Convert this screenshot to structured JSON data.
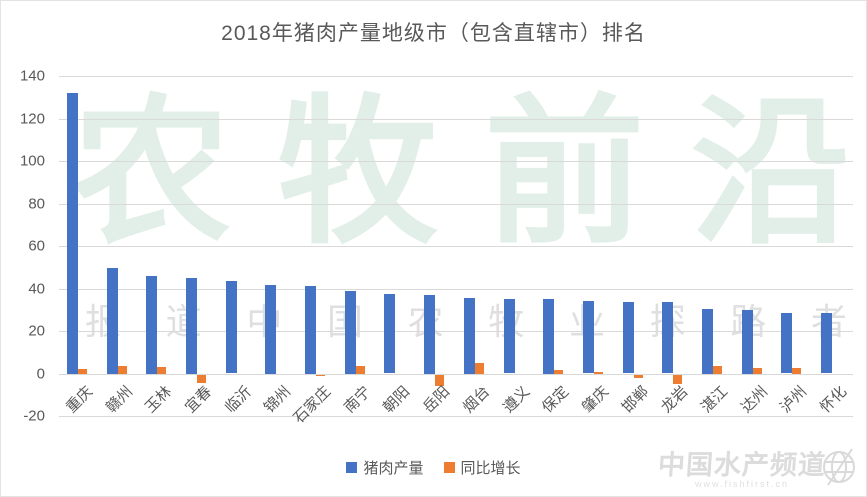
{
  "title": "2018年猪肉产量地级市（包含直辖市）排名",
  "chart_data": {
    "type": "bar",
    "title": "2018年猪肉产量地级市（包含直辖市）排名",
    "categories": [
      "重庆",
      "赣州",
      "玉林",
      "宜春",
      "临沂",
      "锦州",
      "石家庄",
      "南宁",
      "朝阳",
      "岳阳",
      "烟台",
      "遵义",
      "保定",
      "肇庆",
      "邯郸",
      "龙岩",
      "湛江",
      "达州",
      "泸州",
      "怀化"
    ],
    "series": [
      {
        "name": "猪肉产量",
        "color": "#4472C4",
        "values": [
          132,
          49.5,
          46,
          45,
          43.7,
          41.5,
          41,
          39,
          37.6,
          37,
          35.5,
          35.2,
          35,
          34.2,
          33.8,
          33.8,
          30.5,
          30,
          28.6,
          28.3
        ]
      },
      {
        "name": "同比增长",
        "color": "#ED7D31",
        "values": [
          2,
          3.5,
          3,
          -4,
          0,
          0,
          -0.5,
          3.5,
          0,
          -5.5,
          5,
          0,
          1.5,
          0.5,
          -1.5,
          -4.5,
          3.5,
          2.5,
          2.5,
          0
        ]
      }
    ],
    "xlabel": "",
    "ylabel": "",
    "ylim": [
      -20,
      140
    ],
    "ytick_step": 20,
    "yticks": [
      140,
      120,
      100,
      80,
      60,
      40,
      20,
      0,
      -20
    ],
    "grid": true,
    "legend_position": "bottom"
  },
  "legend": {
    "items": [
      {
        "label": "猪肉产量",
        "color": "#4472C4"
      },
      {
        "label": "同比增长",
        "color": "#ED7D31"
      }
    ]
  },
  "watermarks": {
    "brand": "农牧前沿",
    "tagline": "报道中国农牧业探路者",
    "logo_text": "中国水产频道",
    "logo_url": "www.fishfirst.cn"
  },
  "colors": {
    "bar_blue": "#4472C4",
    "bar_orange": "#ED7D31",
    "gridline": "#d9d9d9",
    "axis_text": "#595959",
    "title_text": "#595959",
    "watermark_green": "rgba(96,168,128,0.18)",
    "watermark_gray": "rgba(150,150,150,0.30)",
    "logo_gray": "#dcdcdc"
  }
}
